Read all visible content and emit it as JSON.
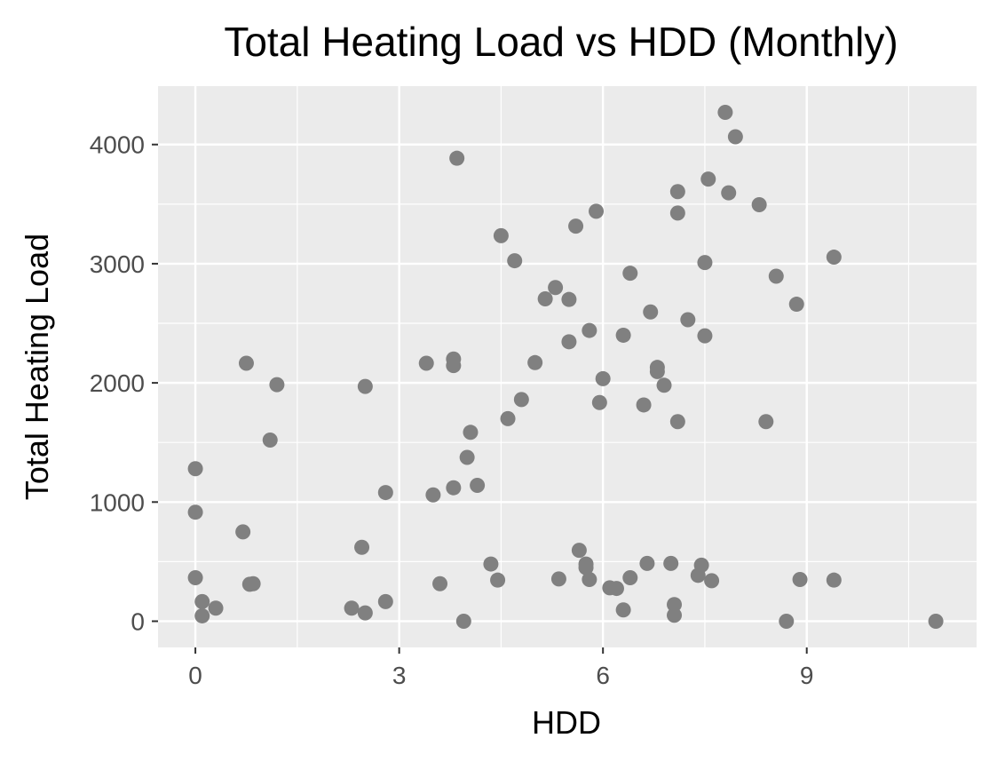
{
  "chart_data": {
    "type": "scatter",
    "title": "Total Heating Load vs HDD (Monthly)",
    "xlabel": "HDD",
    "ylabel": "Total Heating Load",
    "xlim": [
      -0.55,
      11.5
    ],
    "ylim": [
      -220,
      4490
    ],
    "x_ticks": [
      0,
      3,
      6,
      9
    ],
    "x_minor": [
      1.5,
      4.5,
      7.5,
      10.5
    ],
    "y_ticks": [
      0,
      1000,
      2000,
      3000,
      4000
    ],
    "y_minor": [
      500,
      1500,
      2500,
      3500
    ],
    "grid": true,
    "background": "#ebebeb",
    "grid_color": "#ffffff",
    "point_color": "#808080",
    "points": [
      [
        0.0,
        1280
      ],
      [
        0.0,
        915
      ],
      [
        0.0,
        365
      ],
      [
        0.1,
        165
      ],
      [
        0.1,
        45
      ],
      [
        0.3,
        110
      ],
      [
        0.7,
        750
      ],
      [
        0.75,
        2165
      ],
      [
        0.8,
        310
      ],
      [
        0.85,
        315
      ],
      [
        1.1,
        1520
      ],
      [
        1.2,
        1985
      ],
      [
        2.3,
        110
      ],
      [
        2.45,
        620
      ],
      [
        2.5,
        70
      ],
      [
        2.5,
        1970
      ],
      [
        2.8,
        1080
      ],
      [
        2.8,
        165
      ],
      [
        3.4,
        2165
      ],
      [
        3.5,
        1060
      ],
      [
        3.6,
        315
      ],
      [
        3.8,
        1120
      ],
      [
        3.8,
        2200
      ],
      [
        3.8,
        2145
      ],
      [
        3.85,
        3885
      ],
      [
        3.95,
        0
      ],
      [
        4.0,
        1375
      ],
      [
        4.05,
        1585
      ],
      [
        4.15,
        1140
      ],
      [
        4.35,
        480
      ],
      [
        4.45,
        345
      ],
      [
        4.5,
        3235
      ],
      [
        4.6,
        1700
      ],
      [
        4.7,
        3025
      ],
      [
        4.8,
        1860
      ],
      [
        5.0,
        2170
      ],
      [
        5.15,
        2705
      ],
      [
        5.3,
        2800
      ],
      [
        5.35,
        355
      ],
      [
        5.5,
        2700
      ],
      [
        5.5,
        2345
      ],
      [
        5.6,
        3315
      ],
      [
        5.65,
        595
      ],
      [
        5.75,
        480
      ],
      [
        5.75,
        450
      ],
      [
        5.8,
        2440
      ],
      [
        5.8,
        350
      ],
      [
        5.9,
        3440
      ],
      [
        5.95,
        1835
      ],
      [
        6.0,
        2035
      ],
      [
        6.1,
        280
      ],
      [
        6.2,
        275
      ],
      [
        6.3,
        2400
      ],
      [
        6.3,
        95
      ],
      [
        6.4,
        365
      ],
      [
        6.4,
        2920
      ],
      [
        6.6,
        1815
      ],
      [
        6.65,
        485
      ],
      [
        6.7,
        2595
      ],
      [
        6.8,
        2130
      ],
      [
        6.8,
        2095
      ],
      [
        6.9,
        1980
      ],
      [
        7.0,
        485
      ],
      [
        7.05,
        140
      ],
      [
        7.05,
        50
      ],
      [
        7.1,
        3605
      ],
      [
        7.1,
        3425
      ],
      [
        7.1,
        1675
      ],
      [
        7.25,
        2530
      ],
      [
        7.4,
        385
      ],
      [
        7.45,
        470
      ],
      [
        7.5,
        3010
      ],
      [
        7.5,
        2395
      ],
      [
        7.55,
        3710
      ],
      [
        7.6,
        340
      ],
      [
        7.8,
        4270
      ],
      [
        7.85,
        3595
      ],
      [
        7.95,
        4065
      ],
      [
        8.3,
        3495
      ],
      [
        8.4,
        1675
      ],
      [
        8.55,
        2895
      ],
      [
        8.7,
        0
      ],
      [
        8.85,
        2660
      ],
      [
        8.9,
        350
      ],
      [
        9.4,
        3055
      ],
      [
        9.4,
        345
      ],
      [
        10.9,
        0
      ]
    ]
  }
}
